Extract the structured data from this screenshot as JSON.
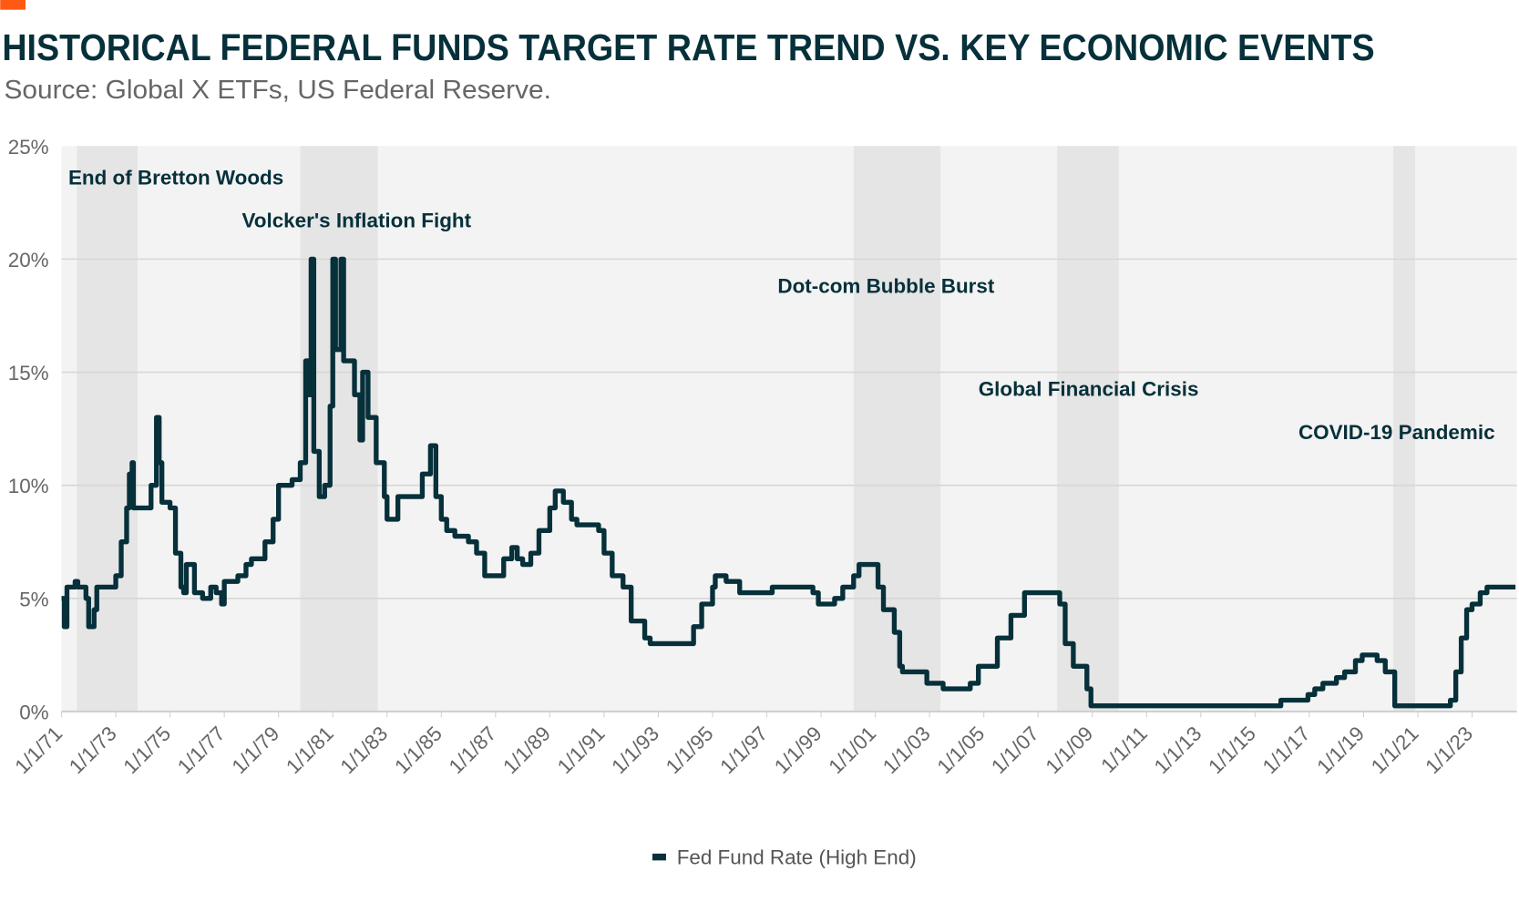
{
  "brand_accent": "#ff5a14",
  "chart_data": {
    "type": "line",
    "title": "HISTORICAL FEDERAL FUNDS TARGET RATE TREND VS. KEY ECONOMIC EVENTS",
    "subtitle": "Source: Global X ETFs, US Federal Reserve.",
    "xlabel": "",
    "ylabel": "",
    "ylim": [
      0,
      25
    ],
    "xlim": [
      1971,
      2024.7
    ],
    "y_ticks": [
      {
        "v": 0,
        "label": "0%"
      },
      {
        "v": 5,
        "label": "5%"
      },
      {
        "v": 10,
        "label": "10%"
      },
      {
        "v": 15,
        "label": "15%"
      },
      {
        "v": 20,
        "label": "20%"
      },
      {
        "v": 25,
        "label": "25%"
      }
    ],
    "x_ticks": [
      "1/1/71",
      "1/1/73",
      "1/1/75",
      "1/1/77",
      "1/1/79",
      "1/1/81",
      "1/1/83",
      "1/1/85",
      "1/1/87",
      "1/1/89",
      "1/1/91",
      "1/1/93",
      "1/1/95",
      "1/1/97",
      "1/1/99",
      "1/1/01",
      "1/1/03",
      "1/1/05",
      "1/1/07",
      "1/1/09",
      "1/1/11",
      "1/1/13",
      "1/1/15",
      "1/1/17",
      "1/1/19",
      "1/1/21",
      "1/1/23"
    ],
    "grid": true,
    "legend": {
      "position": "bottom-center",
      "entries": [
        "Fed Fund Rate (High End)"
      ]
    },
    "colors": {
      "line": "#06303a",
      "plot_bg": "#f3f3f3",
      "shade": "#e5e5e5",
      "grid": "#d6d6d6"
    },
    "events": [
      {
        "label": "End of Bretton Woods",
        "start": 1971.57,
        "end": 1973.8,
        "label_at": [
          1971.25,
          23.3
        ]
      },
      {
        "label": "Volcker's Inflation Fight",
        "start": 1979.8,
        "end": 1982.66,
        "label_at": [
          1977.65,
          21.4
        ]
      },
      {
        "label": "Dot-com Bubble Burst",
        "start": 2000.2,
        "end": 2003.4,
        "label_at": [
          1997.4,
          18.5
        ]
      },
      {
        "label": "Global Financial Crisis",
        "start": 2007.7,
        "end": 2009.97,
        "label_at": [
          2004.8,
          13.95
        ]
      },
      {
        "label": "COVID-19 Pandemic",
        "start": 2020.1,
        "end": 2020.9,
        "label_at": [
          2016.6,
          12.05
        ]
      }
    ],
    "series": [
      {
        "name": "Fed Fund Rate (High End)",
        "x": [
          1971.0,
          1971.1,
          1971.2,
          1971.5,
          1971.6,
          1971.9,
          1972.0,
          1972.2,
          1972.3,
          1973.0,
          1973.2,
          1973.4,
          1973.5,
          1973.6,
          1973.65,
          1974.0,
          1974.3,
          1974.5,
          1974.6,
          1974.7,
          1975.0,
          1975.2,
          1975.4,
          1975.5,
          1975.6,
          1975.9,
          1976.2,
          1976.5,
          1976.7,
          1976.9,
          1977.0,
          1977.5,
          1977.8,
          1978.0,
          1978.5,
          1978.8,
          1979.0,
          1979.5,
          1979.8,
          1980.0,
          1980.1,
          1980.2,
          1980.3,
          1980.5,
          1980.7,
          1980.9,
          1981.0,
          1981.1,
          1981.3,
          1981.4,
          1981.8,
          1982.0,
          1982.1,
          1982.3,
          1982.6,
          1982.9,
          1983.0,
          1983.4,
          1984.0,
          1984.3,
          1984.6,
          1984.8,
          1985.0,
          1985.2,
          1985.5,
          1986.0,
          1986.3,
          1986.6,
          1987.0,
          1987.3,
          1987.6,
          1987.8,
          1988.0,
          1988.3,
          1988.6,
          1989.0,
          1989.2,
          1989.5,
          1989.8,
          1990.0,
          1990.8,
          1991.0,
          1991.3,
          1991.7,
          1992.0,
          1992.5,
          1992.7,
          1994.0,
          1994.3,
          1994.6,
          1995.0,
          1995.1,
          1995.5,
          1996.0,
          1997.2,
          1998.7,
          1998.9,
          1999.5,
          1999.8,
          2000.2,
          2000.4,
          2001.0,
          2001.1,
          2001.3,
          2001.7,
          2001.9,
          2002.0,
          2002.9,
          2003.5,
          2004.5,
          2004.8,
          2005.5,
          2006.0,
          2006.5,
          2007.6,
          2007.8,
          2008.0,
          2008.3,
          2008.8,
          2008.95,
          2015.95,
          2016.95,
          2017.2,
          2017.5,
          2018.0,
          2018.3,
          2018.7,
          2018.95,
          2019.5,
          2019.8,
          2020.15,
          2022.2,
          2022.4,
          2022.6,
          2022.8,
          2023.0,
          2023.3,
          2023.55,
          2024.6
        ],
        "y": [
          5.0,
          3.75,
          5.5,
          5.75,
          5.5,
          5.0,
          3.75,
          4.5,
          5.5,
          6.0,
          7.5,
          9.0,
          10.5,
          11.0,
          9.0,
          9.0,
          10.0,
          13.0,
          11.0,
          9.25,
          9.0,
          7.0,
          5.5,
          5.25,
          6.5,
          5.25,
          5.0,
          5.5,
          5.25,
          4.75,
          5.75,
          6.0,
          6.5,
          6.75,
          7.5,
          8.5,
          10.0,
          10.25,
          11.0,
          15.5,
          14.0,
          20.0,
          11.5,
          9.5,
          10.0,
          13.5,
          20.0,
          16.0,
          20.0,
          15.5,
          14.0,
          12.0,
          15.0,
          13.0,
          11.0,
          9.5,
          8.5,
          9.5,
          9.5,
          10.5,
          11.75,
          9.5,
          8.5,
          8.0,
          7.75,
          7.5,
          7.0,
          6.0,
          6.0,
          6.75,
          7.25,
          6.75,
          6.5,
          7.0,
          8.0,
          9.0,
          9.75,
          9.25,
          8.5,
          8.25,
          8.0,
          7.0,
          6.0,
          5.5,
          4.0,
          3.25,
          3.0,
          3.0,
          3.75,
          4.75,
          5.5,
          6.0,
          5.75,
          5.25,
          5.5,
          5.25,
          4.75,
          5.0,
          5.5,
          6.0,
          6.5,
          6.5,
          5.5,
          4.5,
          3.5,
          2.0,
          1.75,
          1.25,
          1.0,
          1.25,
          2.0,
          3.25,
          4.25,
          5.25,
          5.25,
          4.75,
          3.0,
          2.0,
          1.0,
          0.25,
          0.5,
          0.75,
          1.0,
          1.25,
          1.5,
          1.75,
          2.25,
          2.5,
          2.25,
          1.75,
          0.25,
          0.5,
          1.75,
          3.25,
          4.5,
          4.75,
          5.25,
          5.5,
          5.5
        ]
      }
    ]
  }
}
